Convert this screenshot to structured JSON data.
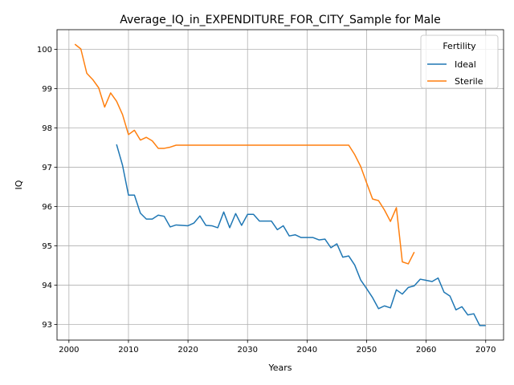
{
  "chart_data": {
    "type": "line",
    "title": "Average_IQ_in_EXPENDITURE_FOR_CITY_Sample for Male",
    "xlabel": "Years",
    "ylabel": "IQ",
    "xlim": [
      1998,
      2073
    ],
    "ylim": [
      92.6,
      100.5
    ],
    "xticks": [
      2000,
      2010,
      2020,
      2030,
      2040,
      2050,
      2060,
      2070
    ],
    "yticks": [
      93,
      94,
      95,
      96,
      97,
      98,
      99,
      100
    ],
    "grid": true,
    "legend": {
      "title": "Fertility",
      "placement": "top-right"
    },
    "series": [
      {
        "name": "Ideal",
        "color": "#1f77b4",
        "x": [
          2008,
          2009,
          2010,
          2011,
          2012,
          2013,
          2014,
          2015,
          2016,
          2017,
          2018,
          2019,
          2020,
          2021,
          2022,
          2023,
          2024,
          2025,
          2026,
          2027,
          2028,
          2029,
          2030,
          2031,
          2032,
          2033,
          2034,
          2035,
          2036,
          2037,
          2038,
          2039,
          2040,
          2041,
          2042,
          2043,
          2044,
          2045,
          2046,
          2047,
          2048,
          2049,
          2050,
          2051,
          2052,
          2053,
          2054,
          2055,
          2056,
          2057,
          2058,
          2059,
          2060,
          2061,
          2062,
          2063,
          2064,
          2065,
          2066,
          2067,
          2068,
          2069,
          2070
        ],
        "y": [
          97.58,
          97.05,
          96.29,
          96.29,
          95.83,
          95.68,
          95.68,
          95.78,
          95.75,
          95.48,
          95.53,
          95.52,
          95.51,
          95.58,
          95.76,
          95.52,
          95.51,
          95.46,
          95.86,
          95.46,
          95.82,
          95.52,
          95.8,
          95.8,
          95.63,
          95.63,
          95.63,
          95.41,
          95.51,
          95.25,
          95.28,
          95.21,
          95.21,
          95.21,
          95.15,
          95.17,
          94.95,
          95.05,
          94.71,
          94.74,
          94.51,
          94.13,
          93.91,
          93.68,
          93.4,
          93.47,
          93.42,
          93.88,
          93.77,
          93.94,
          93.98,
          94.15,
          94.12,
          94.09,
          94.18,
          93.82,
          93.72,
          93.37,
          93.45,
          93.24,
          93.27,
          92.97,
          92.97
        ]
      },
      {
        "name": "Sterile",
        "color": "#ff7f0e",
        "x": [
          2001,
          2002,
          2003,
          2004,
          2005,
          2006,
          2007,
          2008,
          2009,
          2010,
          2011,
          2012,
          2013,
          2014,
          2015,
          2016,
          2017,
          2018,
          2019,
          2020,
          2021,
          2022,
          2023,
          2024,
          2025,
          2026,
          2027,
          2028,
          2029,
          2030,
          2031,
          2032,
          2033,
          2034,
          2035,
          2036,
          2037,
          2038,
          2039,
          2040,
          2041,
          2042,
          2043,
          2044,
          2045,
          2046,
          2047,
          2048,
          2049,
          2050,
          2051,
          2052,
          2053,
          2054,
          2055,
          2056,
          2057,
          2058
        ],
        "y": [
          100.13,
          100.01,
          99.39,
          99.23,
          99.02,
          98.53,
          98.89,
          98.68,
          98.34,
          97.83,
          97.94,
          97.69,
          97.76,
          97.67,
          97.48,
          97.48,
          97.51,
          97.56,
          97.56,
          97.56,
          97.56,
          97.56,
          97.56,
          97.56,
          97.56,
          97.56,
          97.56,
          97.56,
          97.56,
          97.56,
          97.56,
          97.56,
          97.56,
          97.56,
          97.56,
          97.56,
          97.56,
          97.56,
          97.56,
          97.56,
          97.56,
          97.56,
          97.56,
          97.56,
          97.56,
          97.56,
          97.56,
          97.32,
          97.02,
          96.6,
          96.19,
          96.15,
          95.91,
          95.62,
          95.97,
          94.59,
          94.54,
          94.84
        ]
      }
    ]
  }
}
